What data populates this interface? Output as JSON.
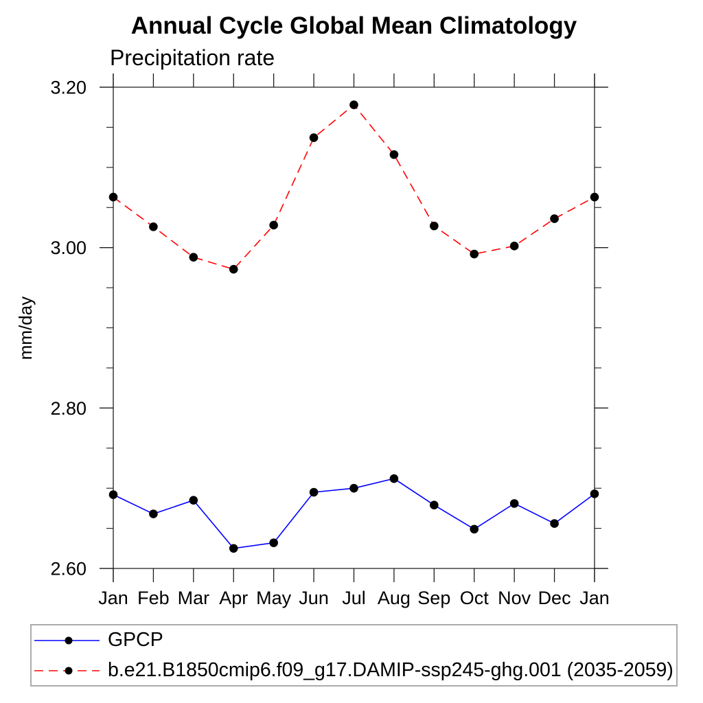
{
  "page": {
    "background": "#ffffff"
  },
  "chart_data": {
    "type": "line",
    "title": "Annual Cycle Global Mean Climatology",
    "subtitle": "Precipitation rate",
    "ylabel": "mm/day",
    "x_tick_labels": [
      "Jan",
      "Feb",
      "Mar",
      "Apr",
      "May",
      "Jun",
      "Jul",
      "Aug",
      "Sep",
      "Oct",
      "Nov",
      "Dec",
      "Jan"
    ],
    "ylim": [
      2.6,
      3.2
    ],
    "y_major_ticks": [
      {
        "value": 2.6,
        "label": "2.60"
      },
      {
        "value": 2.8,
        "label": "2.80"
      },
      {
        "value": 3.0,
        "label": "3.00"
      },
      {
        "value": 3.2,
        "label": "3.20"
      }
    ],
    "y_minor_step": 0.05,
    "grid": false,
    "axis_color": "#1c1c1c",
    "legend": {
      "position": "bottom-left",
      "border_color": "#ababab"
    },
    "series": [
      {
        "name": "GPCP",
        "color": "#0000ff",
        "line_style": "solid",
        "marker": "circle",
        "marker_color": "#000000",
        "values": [
          2.692,
          2.668,
          2.685,
          2.625,
          2.632,
          2.695,
          2.7,
          2.712,
          2.679,
          2.649,
          2.681,
          2.656,
          2.693
        ]
      },
      {
        "name": "b.e21.B1850cmip6.f09_g17.DAMIP-ssp245-ghg.001 (2035-2059)",
        "color": "#ff0000",
        "line_style": "dashed",
        "marker": "circle",
        "marker_color": "#000000",
        "values": [
          3.063,
          3.026,
          2.988,
          2.973,
          3.028,
          3.137,
          3.178,
          3.116,
          3.027,
          2.992,
          3.002,
          3.036,
          3.063
        ]
      }
    ]
  }
}
